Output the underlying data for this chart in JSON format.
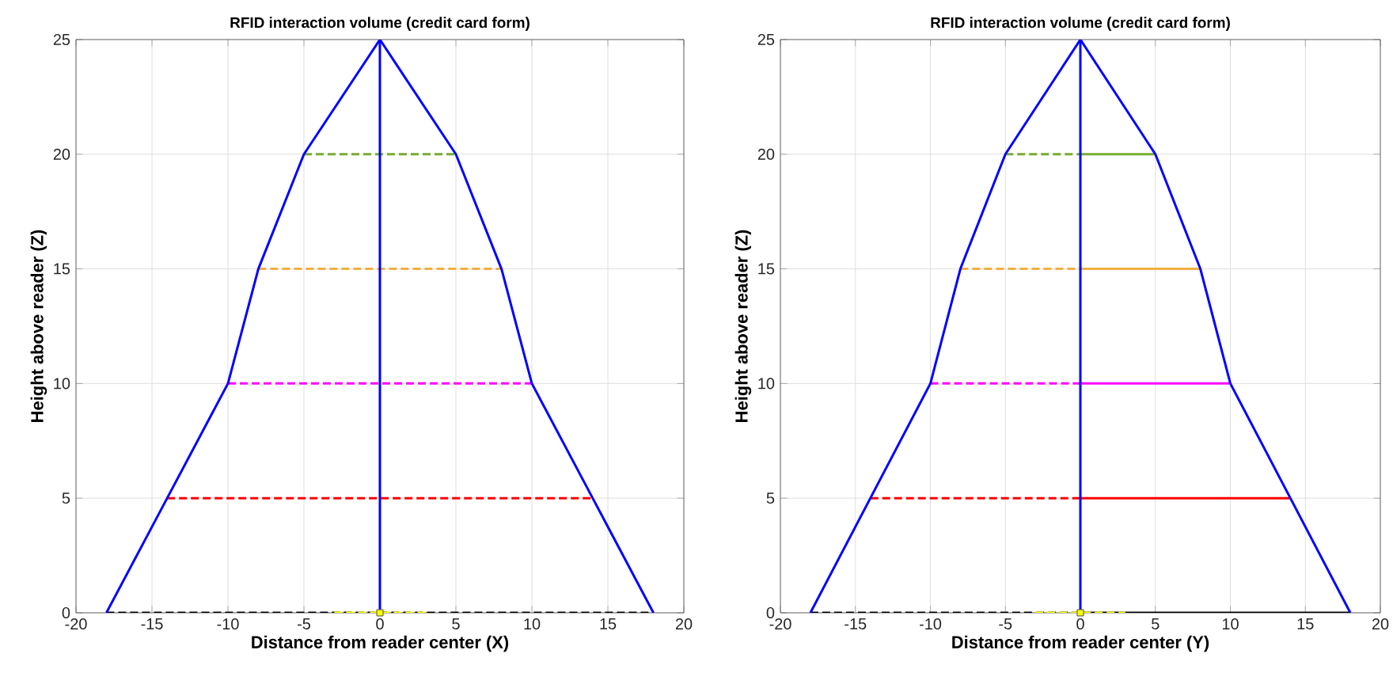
{
  "chart_data": [
    {
      "type": "line",
      "title": "RFID interaction volume (credit card form)",
      "xlabel": "Distance from reader center (X)",
      "ylabel": "Height above reader (Z)",
      "xlim": [
        -20,
        20
      ],
      "ylim": [
        0,
        25
      ],
      "xticks": [
        -20,
        -15,
        -10,
        -5,
        0,
        5,
        10,
        15,
        20
      ],
      "yticks": [
        0,
        5,
        10,
        15,
        20,
        25
      ],
      "grid": true,
      "series": [
        {
          "color": "#000000",
          "line_style": "dashed",
          "x": [
            -18,
            18
          ],
          "values": [
            0,
            0
          ]
        },
        {
          "color": "#ff0000",
          "line_style": "dashed",
          "x": [
            -14,
            14
          ],
          "values": [
            5,
            5
          ]
        },
        {
          "color": "#ff00ff",
          "line_style": "dashed",
          "x": [
            -10,
            10
          ],
          "values": [
            10,
            10
          ]
        },
        {
          "color": "#f0b040",
          "line_style": "dashed",
          "x": [
            -8,
            8
          ],
          "values": [
            15,
            15
          ]
        },
        {
          "color": "#77ac30",
          "line_style": "dashed",
          "x": [
            -5,
            5
          ],
          "values": [
            20,
            20
          ]
        },
        {
          "color": "#ffff00",
          "line_style": "dashed",
          "x": [
            -3,
            3
          ],
          "values": [
            0,
            0
          ]
        },
        {
          "color": "#0000ff",
          "line_style": "solid",
          "x": [
            -18,
            -14,
            -10,
            -8,
            -5,
            0,
            5,
            8,
            10,
            14,
            18
          ],
          "values": [
            0,
            5,
            10,
            15,
            20,
            25,
            20,
            15,
            10,
            5,
            0
          ]
        },
        {
          "color": "#0000ff",
          "line_style": "solid",
          "x": [
            0,
            0
          ],
          "values": [
            0,
            25
          ]
        },
        {
          "type": "scatter",
          "marker": "square",
          "color": "#ffff00",
          "x": [
            0
          ],
          "values": [
            0
          ]
        }
      ]
    },
    {
      "type": "line",
      "title": "RFID interaction volume (credit card form)",
      "xlabel": "Distance from reader center (Y)",
      "ylabel": "Height above reader (Z)",
      "xlim": [
        -20,
        20
      ],
      "ylim": [
        0,
        25
      ],
      "xticks": [
        -20,
        -15,
        -10,
        -5,
        0,
        5,
        10,
        15,
        20
      ],
      "yticks": [
        0,
        5,
        10,
        15,
        20,
        25
      ],
      "grid": true,
      "series": [
        {
          "color": "#000000",
          "line_style": "dashed",
          "x": [
            -18,
            0
          ],
          "values": [
            0,
            0
          ]
        },
        {
          "color": "#000000",
          "line_style": "solid",
          "x": [
            0,
            18
          ],
          "values": [
            0,
            0
          ]
        },
        {
          "color": "#ff0000",
          "line_style": "dashed",
          "x": [
            -14,
            0
          ],
          "values": [
            5,
            5
          ]
        },
        {
          "color": "#ff0000",
          "line_style": "solid",
          "x": [
            0,
            14
          ],
          "values": [
            5,
            5
          ]
        },
        {
          "color": "#ff00ff",
          "line_style": "dashed",
          "x": [
            -10,
            0
          ],
          "values": [
            10,
            10
          ]
        },
        {
          "color": "#ff00ff",
          "line_style": "solid",
          "x": [
            0,
            10
          ],
          "values": [
            10,
            10
          ]
        },
        {
          "color": "#f0b040",
          "line_style": "dashed",
          "x": [
            -8,
            0
          ],
          "values": [
            15,
            15
          ]
        },
        {
          "color": "#f0b040",
          "line_style": "solid",
          "x": [
            0,
            8
          ],
          "values": [
            15,
            15
          ]
        },
        {
          "color": "#77ac30",
          "line_style": "dashed",
          "x": [
            -5,
            0
          ],
          "values": [
            20,
            20
          ]
        },
        {
          "color": "#77ac30",
          "line_style": "solid",
          "x": [
            0,
            5
          ],
          "values": [
            20,
            20
          ]
        },
        {
          "color": "#ffff00",
          "line_style": "dashed",
          "x": [
            -3,
            3
          ],
          "values": [
            0,
            0
          ]
        },
        {
          "color": "#0000ff",
          "line_style": "solid",
          "x": [
            -18,
            -14,
            -10,
            -8,
            -5,
            0,
            5,
            8,
            10,
            14,
            18
          ],
          "values": [
            0,
            5,
            10,
            15,
            20,
            25,
            20,
            15,
            10,
            5,
            0
          ]
        },
        {
          "color": "#0000ff",
          "line_style": "solid",
          "x": [
            0,
            0
          ],
          "values": [
            0,
            25
          ]
        },
        {
          "type": "scatter",
          "marker": "square",
          "color": "#ffff00",
          "x": [
            0
          ],
          "values": [
            0
          ]
        }
      ]
    }
  ]
}
